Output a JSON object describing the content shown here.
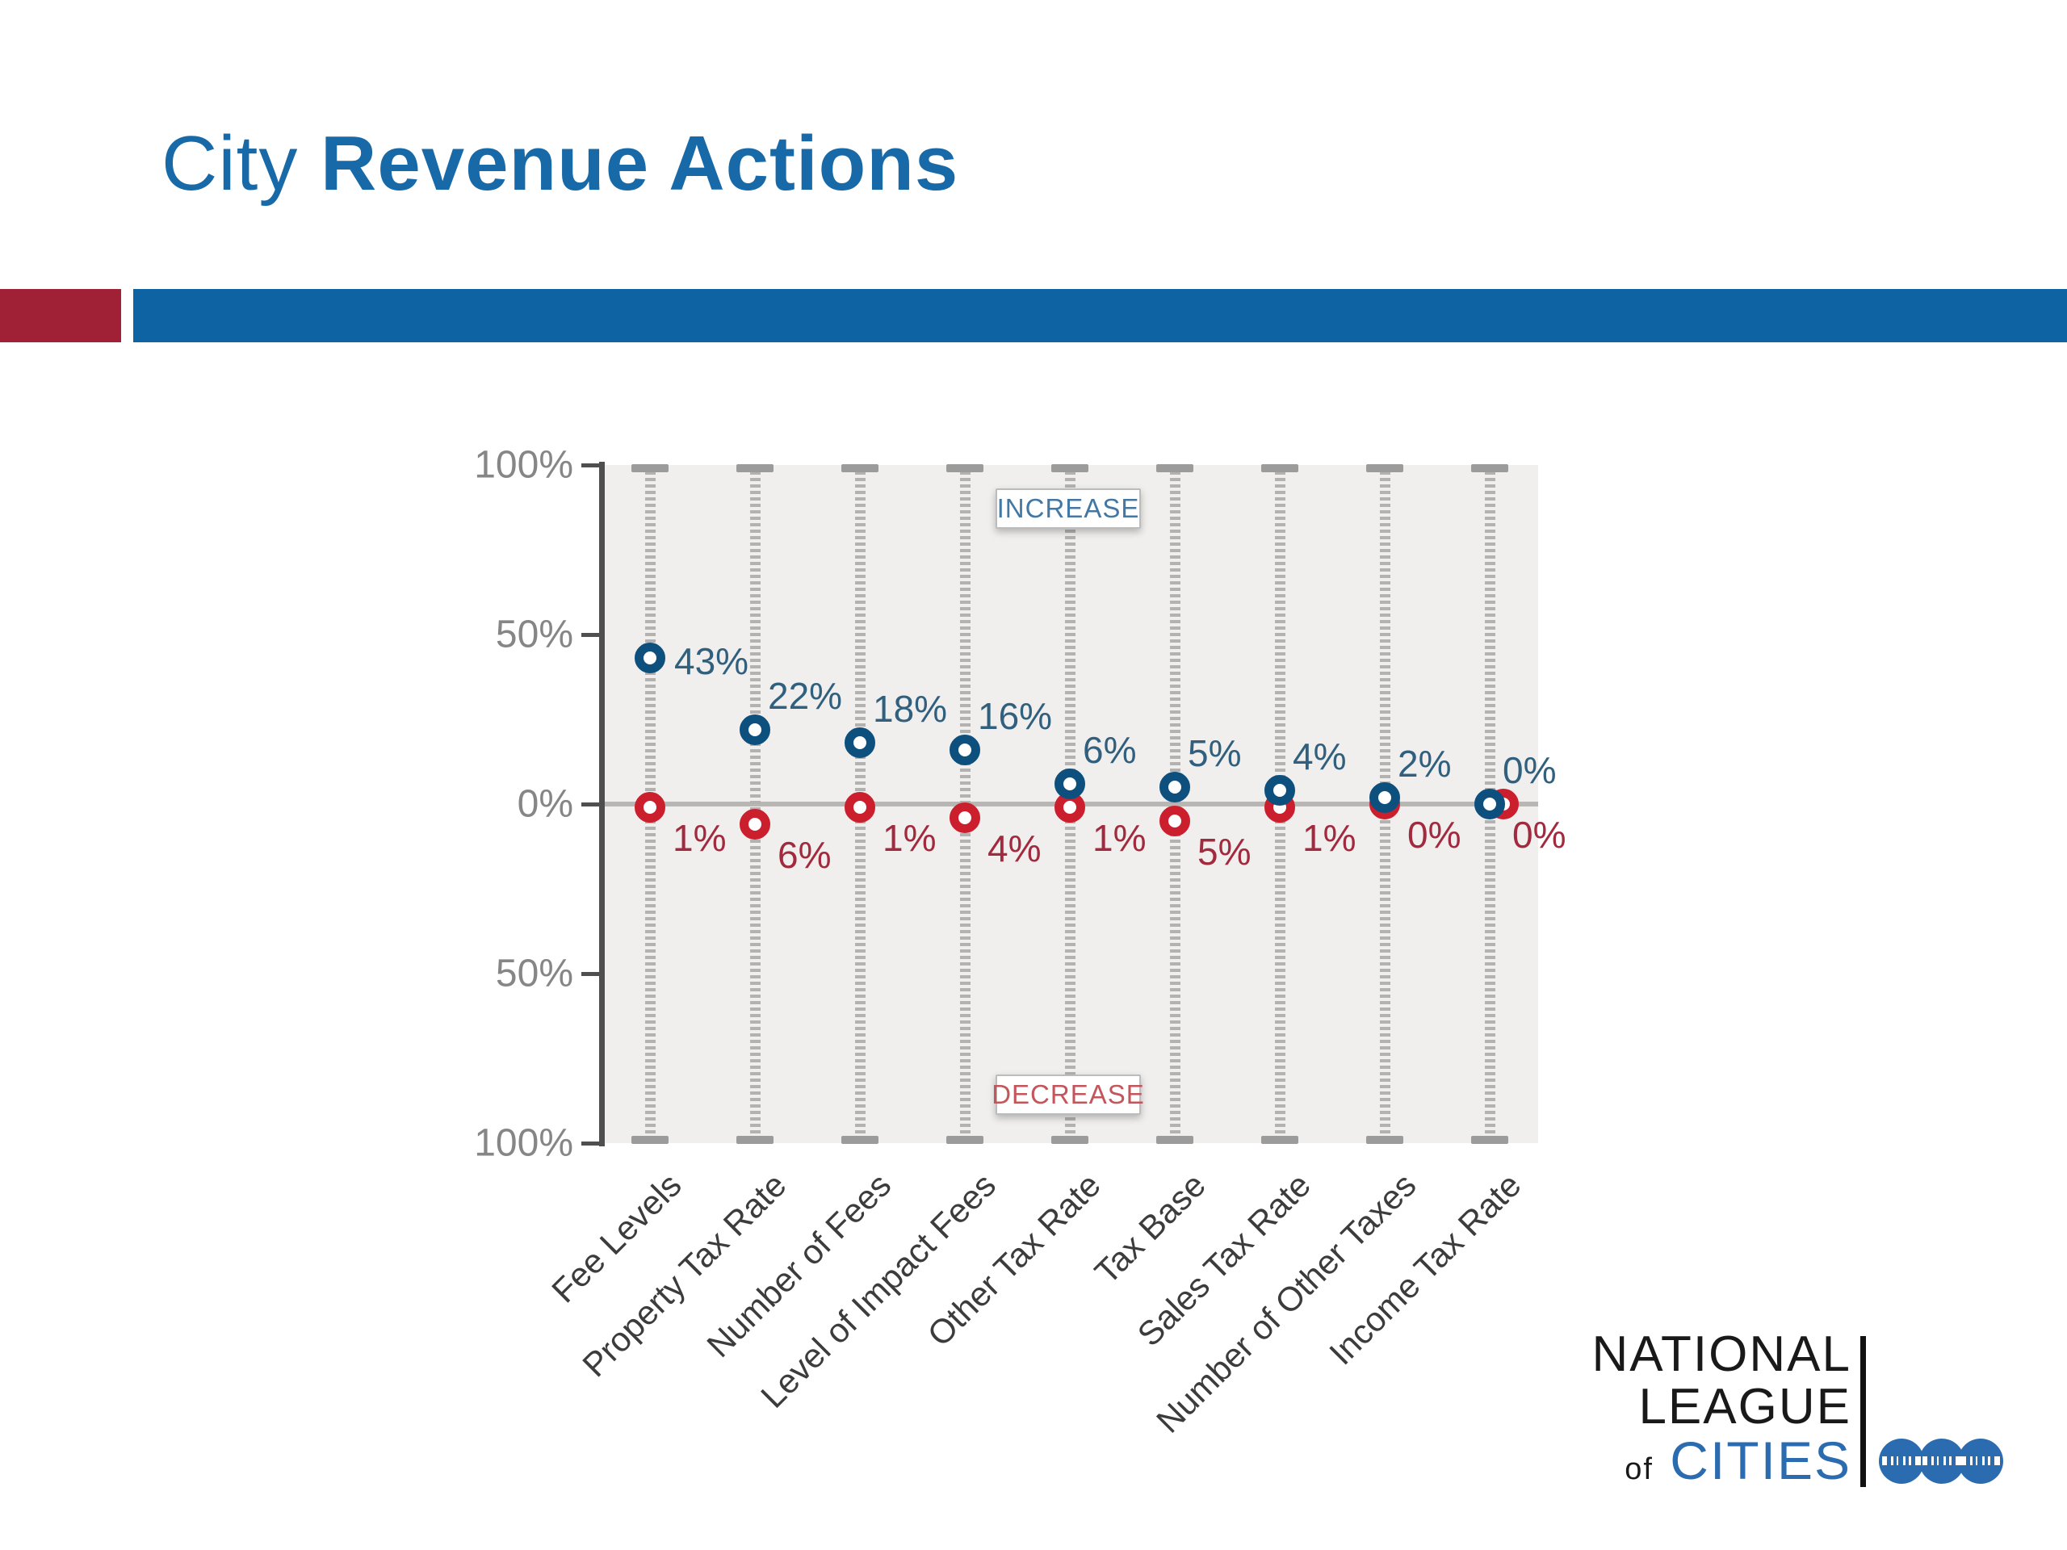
{
  "header": {
    "title_light": "City",
    "title_bold": "Revenue Actions"
  },
  "stripe": {
    "red_color": "#a02136",
    "blue_color": "#0e63a3"
  },
  "chart_data": {
    "type": "scatter",
    "subtype": "increase-decrease-dumbbell",
    "categories": [
      "Fee Levels",
      "Property Tax Rate",
      "Number of Fees",
      "Level of Impact Fees",
      "Other Tax Rate",
      "Tax Base",
      "Sales Tax Rate",
      "Number of Other Taxes",
      "Income Tax Rate"
    ],
    "series": [
      {
        "name": "Increase",
        "direction": "up",
        "marker_color": "#0d4f7d",
        "label_color": "#31607f",
        "values": [
          43,
          22,
          18,
          16,
          6,
          5,
          4,
          2,
          0
        ],
        "value_labels": [
          "43%",
          "22%",
          "18%",
          "16%",
          "6%",
          "5%",
          "4%",
          "2%",
          "0%"
        ]
      },
      {
        "name": "Decrease",
        "direction": "down",
        "marker_color": "#cc1f2d",
        "label_color": "#a12a3e",
        "values": [
          1,
          6,
          1,
          4,
          1,
          5,
          1,
          0,
          0
        ],
        "value_labels": [
          "1%",
          "6%",
          "1%",
          "4%",
          "1%",
          "5%",
          "1%",
          "0%",
          "0%"
        ]
      }
    ],
    "y_axis": {
      "tick_labels": [
        "100%",
        "50%",
        "0%",
        "50%",
        "100%"
      ],
      "range_pct": [
        -100,
        100
      ],
      "zero_line": true
    },
    "annotations": [
      {
        "text": "INCREASE",
        "color": "#4478a4",
        "position": "top-center"
      },
      {
        "text": "DECREASE",
        "color": "#c4555b",
        "position": "bottom-center"
      }
    ],
    "legend_position": "none",
    "grid": "off",
    "plot_background": "#f0efed"
  },
  "logo": {
    "line1": "NATIONAL",
    "line2": "LEAGUE",
    "line3_small": "of",
    "line3_large": "CITIES",
    "cities_color": "#2b6cb0"
  }
}
